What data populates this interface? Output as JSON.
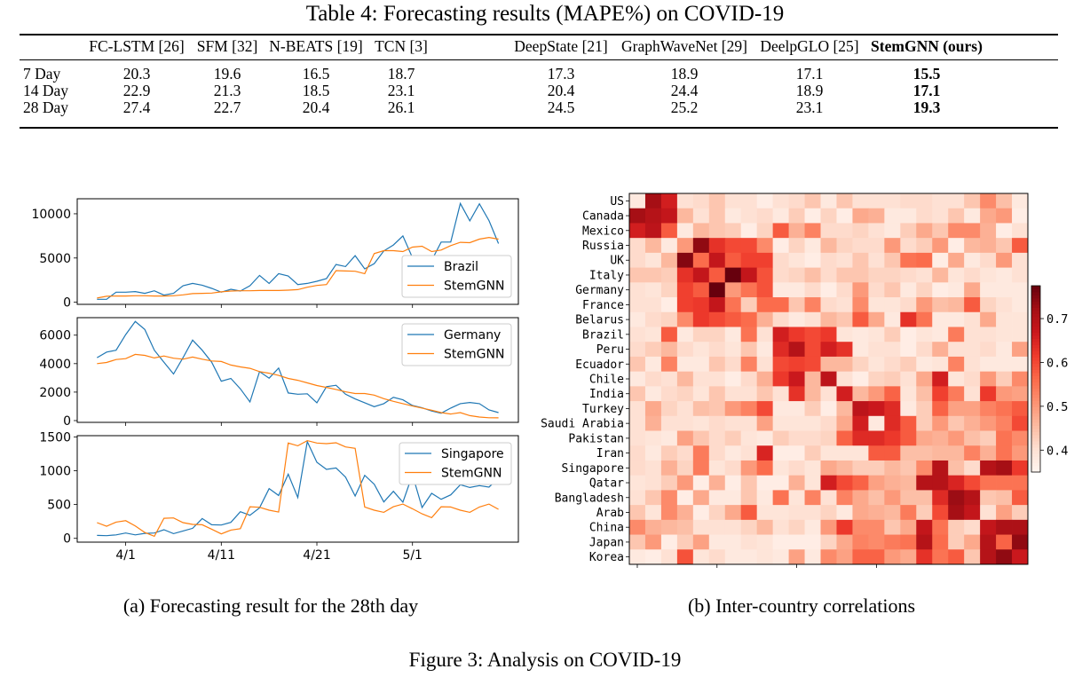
{
  "table": {
    "title": "Table 4: Forecasting results (MAPE%) on COVID-19",
    "columns": [
      "FC-LSTM [26]",
      "SFM [32]",
      "N-BEATS [19]",
      "TCN [3]",
      "DeepState [21]",
      "GraphWaveNet [29]",
      "DeelpGLO [25]",
      "StemGNN (ours)"
    ],
    "bold_column": "StemGNN (ours)",
    "rows": [
      {
        "label": "7 Day",
        "values": [
          "20.3",
          "19.6",
          "16.5",
          "18.7",
          "17.3",
          "18.9",
          "17.1",
          "15.5"
        ]
      },
      {
        "label": "14 Day",
        "values": [
          "22.9",
          "21.3",
          "18.5",
          "23.1",
          "20.4",
          "24.4",
          "18.9",
          "17.1"
        ]
      },
      {
        "label": "28 Day",
        "values": [
          "27.4",
          "22.7",
          "20.4",
          "26.1",
          "24.5",
          "25.2",
          "23.1",
          "19.3"
        ]
      }
    ]
  },
  "chart_data": [
    {
      "type": "line",
      "panel": "Brazil",
      "x": [
        "3/29",
        "3/30",
        "3/31",
        "4/1",
        "4/2",
        "4/3",
        "4/4",
        "4/5",
        "4/6",
        "4/7",
        "4/8",
        "4/9",
        "4/10",
        "4/11",
        "4/12",
        "4/13",
        "4/14",
        "4/15",
        "4/16",
        "4/17",
        "4/18",
        "4/19",
        "4/20",
        "4/21",
        "4/22",
        "4/23",
        "4/24",
        "4/25",
        "4/26",
        "4/27",
        "4/28",
        "4/29",
        "4/30",
        "5/1",
        "5/2",
        "5/3",
        "5/4",
        "5/5",
        "5/6",
        "5/7",
        "5/8",
        "5/9",
        "5/10"
      ],
      "xticks": [
        "4/1",
        "4/11",
        "4/21",
        "5/1"
      ],
      "yticks": [
        0,
        5000,
        10000
      ],
      "ylim": [
        -240,
        11700
      ],
      "legend": "top-right",
      "series": [
        {
          "name": "Brazil",
          "color": "#1f77b4",
          "values": [
            330,
            330,
            1130,
            1130,
            1200,
            1000,
            1300,
            800,
            1000,
            1870,
            2130,
            1930,
            1570,
            1130,
            1470,
            1270,
            1870,
            3030,
            2130,
            3230,
            2970,
            2000,
            2130,
            2370,
            2670,
            4270,
            4030,
            5270,
            3770,
            4370,
            5800,
            6470,
            7500,
            5030,
            4900,
            4730,
            6800,
            6800,
            11170,
            9200,
            11130,
            9230,
            6630
          ]
        },
        {
          "name": "StemGNN",
          "color": "#ff7f0e",
          "values": [
            470,
            670,
            700,
            700,
            730,
            730,
            700,
            700,
            730,
            830,
            970,
            1000,
            1030,
            1170,
            1270,
            1300,
            1300,
            1330,
            1330,
            1330,
            1370,
            1430,
            1700,
            1900,
            2000,
            3570,
            3530,
            3500,
            3230,
            5500,
            5830,
            5830,
            5730,
            6230,
            6330,
            5730,
            5900,
            6400,
            6770,
            6730,
            7130,
            7330,
            7130
          ]
        }
      ]
    },
    {
      "type": "line",
      "panel": "Germany",
      "yticks": [
        0,
        2000,
        4000,
        6000
      ],
      "ylim": [
        -125,
        7230
      ],
      "legend": "top-right",
      "series": [
        {
          "name": "Germany",
          "color": "#1f77b4",
          "values": [
            4420,
            4810,
            4940,
            6040,
            6960,
            6400,
            4940,
            4100,
            3270,
            4420,
            5650,
            4940,
            4100,
            2770,
            2960,
            2230,
            1310,
            3440,
            2980,
            3690,
            1940,
            1850,
            1880,
            1250,
            2380,
            2480,
            1850,
            1520,
            1250,
            980,
            1190,
            1630,
            1460,
            1060,
            900,
            670,
            520,
            880,
            1190,
            1270,
            1190,
            750,
            560
          ]
        },
        {
          "name": "StemGNN",
          "color": "#ff7f0e",
          "values": [
            4000,
            4080,
            4290,
            4350,
            4650,
            4580,
            4400,
            4540,
            4380,
            4310,
            4460,
            4310,
            4190,
            4150,
            3900,
            3770,
            3670,
            3440,
            3330,
            3170,
            2960,
            2830,
            2650,
            2460,
            2330,
            2190,
            2020,
            1900,
            1900,
            1790,
            1540,
            1350,
            1190,
            1020,
            880,
            730,
            560,
            460,
            560,
            350,
            250,
            200,
            190
          ]
        }
      ]
    },
    {
      "type": "line",
      "panel": "Singapore",
      "yticks": [
        0,
        500,
        1000,
        1500
      ],
      "ylim": [
        -56,
        1518
      ],
      "legend": "top-right",
      "series": [
        {
          "name": "Singapore",
          "color": "#1f77b4",
          "values": [
            44,
            40,
            52,
            79,
            52,
            74,
            79,
            127,
            70,
            109,
            149,
            293,
            201,
            197,
            236,
            394,
            341,
            451,
            735,
            634,
            949,
            604,
            1430,
            1124,
            1019,
            1041,
            906,
            626,
            932,
            800,
            538,
            696,
            534,
            941,
            455,
            665,
            577,
            643,
            792,
            752,
            779,
            757,
            888
          ]
        },
        {
          "name": "StemGNN",
          "color": "#ff7f0e",
          "values": [
            232,
            179,
            241,
            262,
            184,
            87,
            31,
            297,
            302,
            232,
            206,
            201,
            136,
            66,
            122,
            144,
            468,
            459,
            416,
            389,
            1409,
            1369,
            1444,
            1409,
            1400,
            1413,
            1352,
            1330,
            464,
            416,
            385,
            468,
            507,
            437,
            363,
            306,
            468,
            464,
            416,
            385,
            464,
            507,
            429
          ]
        }
      ]
    },
    {
      "type": "heatmap",
      "rows": [
        "US",
        "Canada",
        "Mexico",
        "Russia",
        "UK",
        "Italy",
        "Germany",
        "France",
        "Belarus",
        "Brazil",
        "Peru",
        "Ecuador",
        "Chile",
        "India",
        "Turkey",
        "Saudi Arabia",
        "Pakistan",
        "Iran",
        "Singapore",
        "Qatar",
        "Bangladesh",
        "Arab",
        "China",
        "Japan",
        "Korea"
      ],
      "colormap": "Reds",
      "colorbar_range": [
        0.35,
        0.775
      ],
      "colorbar_ticks": [
        "0.4",
        "0.5",
        "0.6",
        "0.7"
      ],
      "values": [
        [
          0.38,
          0.72,
          0.66,
          0.4,
          0.41,
          0.44,
          0.4,
          0.4,
          0.37,
          0.4,
          0.41,
          0.44,
          0.38,
          0.44,
          0.4,
          0.4,
          0.4,
          0.41,
          0.41,
          0.4,
          0.4,
          0.44,
          0.52,
          0.45,
          0.38
        ],
        [
          0.72,
          0.7,
          0.68,
          0.46,
          0.4,
          0.44,
          0.38,
          0.4,
          0.41,
          0.38,
          0.43,
          0.37,
          0.42,
          0.37,
          0.48,
          0.47,
          0.38,
          0.38,
          0.41,
          0.4,
          0.44,
          0.38,
          0.48,
          0.5,
          0.37
        ],
        [
          0.66,
          0.69,
          0.58,
          0.38,
          0.46,
          0.44,
          0.43,
          0.37,
          0.42,
          0.58,
          0.47,
          0.53,
          0.41,
          0.41,
          0.42,
          0.4,
          0.38,
          0.43,
          0.48,
          0.44,
          0.52,
          0.52,
          0.47,
          0.37,
          0.4
        ],
        [
          0.41,
          0.46,
          0.38,
          0.5,
          0.74,
          0.63,
          0.6,
          0.6,
          0.52,
          0.37,
          0.42,
          0.38,
          0.46,
          0.42,
          0.41,
          0.41,
          0.5,
          0.41,
          0.43,
          0.5,
          0.37,
          0.46,
          0.47,
          0.44,
          0.58
        ],
        [
          0.41,
          0.39,
          0.46,
          0.75,
          0.56,
          0.68,
          0.58,
          0.61,
          0.61,
          0.41,
          0.39,
          0.37,
          0.41,
          0.4,
          0.44,
          0.4,
          0.44,
          0.55,
          0.56,
          0.37,
          0.48,
          0.38,
          0.41,
          0.5,
          0.4
        ],
        [
          0.44,
          0.44,
          0.43,
          0.63,
          0.68,
          0.58,
          0.78,
          0.68,
          0.59,
          0.41,
          0.42,
          0.45,
          0.41,
          0.44,
          0.44,
          0.42,
          0.42,
          0.41,
          0.4,
          0.46,
          0.39,
          0.41,
          0.39,
          0.38,
          0.4
        ],
        [
          0.4,
          0.39,
          0.42,
          0.61,
          0.58,
          0.78,
          0.5,
          0.55,
          0.59,
          0.38,
          0.38,
          0.41,
          0.37,
          0.41,
          0.5,
          0.41,
          0.44,
          0.38,
          0.42,
          0.37,
          0.38,
          0.48,
          0.38,
          0.38,
          0.38
        ],
        [
          0.4,
          0.4,
          0.37,
          0.61,
          0.62,
          0.68,
          0.55,
          0.43,
          0.56,
          0.56,
          0.44,
          0.53,
          0.41,
          0.4,
          0.52,
          0.39,
          0.39,
          0.41,
          0.5,
          0.45,
          0.46,
          0.58,
          0.42,
          0.4,
          0.38
        ],
        [
          0.38,
          0.41,
          0.42,
          0.52,
          0.62,
          0.6,
          0.58,
          0.56,
          0.47,
          0.41,
          0.38,
          0.4,
          0.46,
          0.44,
          0.58,
          0.48,
          0.38,
          0.63,
          0.55,
          0.38,
          0.38,
          0.4,
          0.48,
          0.39,
          0.39
        ],
        [
          0.4,
          0.39,
          0.58,
          0.38,
          0.42,
          0.42,
          0.38,
          0.55,
          0.4,
          0.66,
          0.62,
          0.6,
          0.62,
          0.39,
          0.38,
          0.39,
          0.43,
          0.37,
          0.39,
          0.38,
          0.54,
          0.4,
          0.4,
          0.39,
          0.39
        ],
        [
          0.41,
          0.43,
          0.46,
          0.41,
          0.39,
          0.41,
          0.39,
          0.44,
          0.38,
          0.64,
          0.7,
          0.6,
          0.66,
          0.63,
          0.38,
          0.4,
          0.4,
          0.37,
          0.41,
          0.47,
          0.4,
          0.4,
          0.41,
          0.38,
          0.49
        ],
        [
          0.44,
          0.38,
          0.53,
          0.38,
          0.38,
          0.44,
          0.41,
          0.53,
          0.4,
          0.6,
          0.61,
          0.6,
          0.46,
          0.46,
          0.42,
          0.39,
          0.41,
          0.43,
          0.38,
          0.39,
          0.53,
          0.4,
          0.38,
          0.38,
          0.38
        ],
        [
          0.38,
          0.41,
          0.4,
          0.46,
          0.4,
          0.4,
          0.37,
          0.41,
          0.47,
          0.62,
          0.67,
          0.46,
          0.69,
          0.4,
          0.37,
          0.42,
          0.43,
          0.4,
          0.48,
          0.66,
          0.39,
          0.41,
          0.5,
          0.43,
          0.52
        ],
        [
          0.44,
          0.38,
          0.41,
          0.42,
          0.39,
          0.44,
          0.4,
          0.4,
          0.44,
          0.4,
          0.63,
          0.46,
          0.4,
          0.66,
          0.46,
          0.5,
          0.57,
          0.39,
          0.45,
          0.61,
          0.54,
          0.4,
          0.62,
          0.5,
          0.49
        ],
        [
          0.4,
          0.48,
          0.42,
          0.4,
          0.45,
          0.44,
          0.5,
          0.53,
          0.6,
          0.38,
          0.38,
          0.43,
          0.37,
          0.46,
          0.69,
          0.67,
          0.64,
          0.38,
          0.43,
          0.57,
          0.49,
          0.49,
          0.53,
          0.55,
          0.58
        ],
        [
          0.4,
          0.47,
          0.4,
          0.4,
          0.39,
          0.41,
          0.4,
          0.4,
          0.49,
          0.39,
          0.39,
          0.39,
          0.41,
          0.48,
          0.66,
          0.38,
          0.64,
          0.58,
          0.43,
          0.5,
          0.44,
          0.47,
          0.5,
          0.53,
          0.6
        ],
        [
          0.4,
          0.39,
          0.38,
          0.49,
          0.44,
          0.41,
          0.43,
          0.39,
          0.38,
          0.43,
          0.41,
          0.41,
          0.42,
          0.57,
          0.64,
          0.64,
          0.62,
          0.58,
          0.48,
          0.47,
          0.5,
          0.45,
          0.43,
          0.55,
          0.52
        ],
        [
          0.41,
          0.38,
          0.43,
          0.41,
          0.54,
          0.41,
          0.38,
          0.4,
          0.65,
          0.37,
          0.37,
          0.43,
          0.39,
          0.39,
          0.39,
          0.58,
          0.58,
          0.45,
          0.45,
          0.46,
          0.46,
          0.53,
          0.47,
          0.55,
          0.5
        ],
        [
          0.41,
          0.4,
          0.47,
          0.42,
          0.54,
          0.39,
          0.41,
          0.5,
          0.56,
          0.39,
          0.41,
          0.39,
          0.48,
          0.46,
          0.43,
          0.43,
          0.46,
          0.44,
          0.52,
          0.7,
          0.45,
          0.41,
          0.7,
          0.72,
          0.62
        ],
        [
          0.39,
          0.4,
          0.43,
          0.5,
          0.37,
          0.47,
          0.37,
          0.44,
          0.37,
          0.37,
          0.47,
          0.39,
          0.66,
          0.6,
          0.57,
          0.49,
          0.47,
          0.46,
          0.7,
          0.7,
          0.65,
          0.6,
          0.55,
          0.55,
          0.55
        ],
        [
          0.4,
          0.44,
          0.52,
          0.37,
          0.48,
          0.38,
          0.38,
          0.44,
          0.38,
          0.55,
          0.39,
          0.53,
          0.4,
          0.53,
          0.48,
          0.45,
          0.5,
          0.45,
          0.45,
          0.64,
          0.73,
          0.7,
          0.44,
          0.45,
          0.58
        ],
        [
          0.44,
          0.39,
          0.52,
          0.47,
          0.37,
          0.42,
          0.48,
          0.58,
          0.39,
          0.39,
          0.4,
          0.4,
          0.42,
          0.38,
          0.48,
          0.47,
          0.46,
          0.54,
          0.43,
          0.6,
          0.72,
          0.68,
          0.4,
          0.49,
          0.43
        ],
        [
          0.52,
          0.47,
          0.46,
          0.45,
          0.4,
          0.4,
          0.4,
          0.42,
          0.46,
          0.4,
          0.42,
          0.38,
          0.5,
          0.62,
          0.52,
          0.52,
          0.44,
          0.48,
          0.68,
          0.55,
          0.43,
          0.41,
          0.68,
          0.71,
          0.71
        ],
        [
          0.44,
          0.5,
          0.37,
          0.43,
          0.49,
          0.38,
          0.38,
          0.4,
          0.39,
          0.37,
          0.37,
          0.37,
          0.42,
          0.48,
          0.53,
          0.52,
          0.54,
          0.55,
          0.7,
          0.56,
          0.43,
          0.48,
          0.7,
          0.57,
          0.74
        ],
        [
          0.38,
          0.37,
          0.4,
          0.59,
          0.39,
          0.41,
          0.38,
          0.38,
          0.39,
          0.38,
          0.49,
          0.38,
          0.52,
          0.49,
          0.57,
          0.57,
          0.5,
          0.48,
          0.63,
          0.55,
          0.58,
          0.44,
          0.7,
          0.74,
          0.67
        ]
      ]
    }
  ],
  "captions": {
    "a": "(a) Forecasting result for the 28th day",
    "b": "(b) Inter-country correlations",
    "figure": "Figure 3: Analysis on COVID-19"
  }
}
